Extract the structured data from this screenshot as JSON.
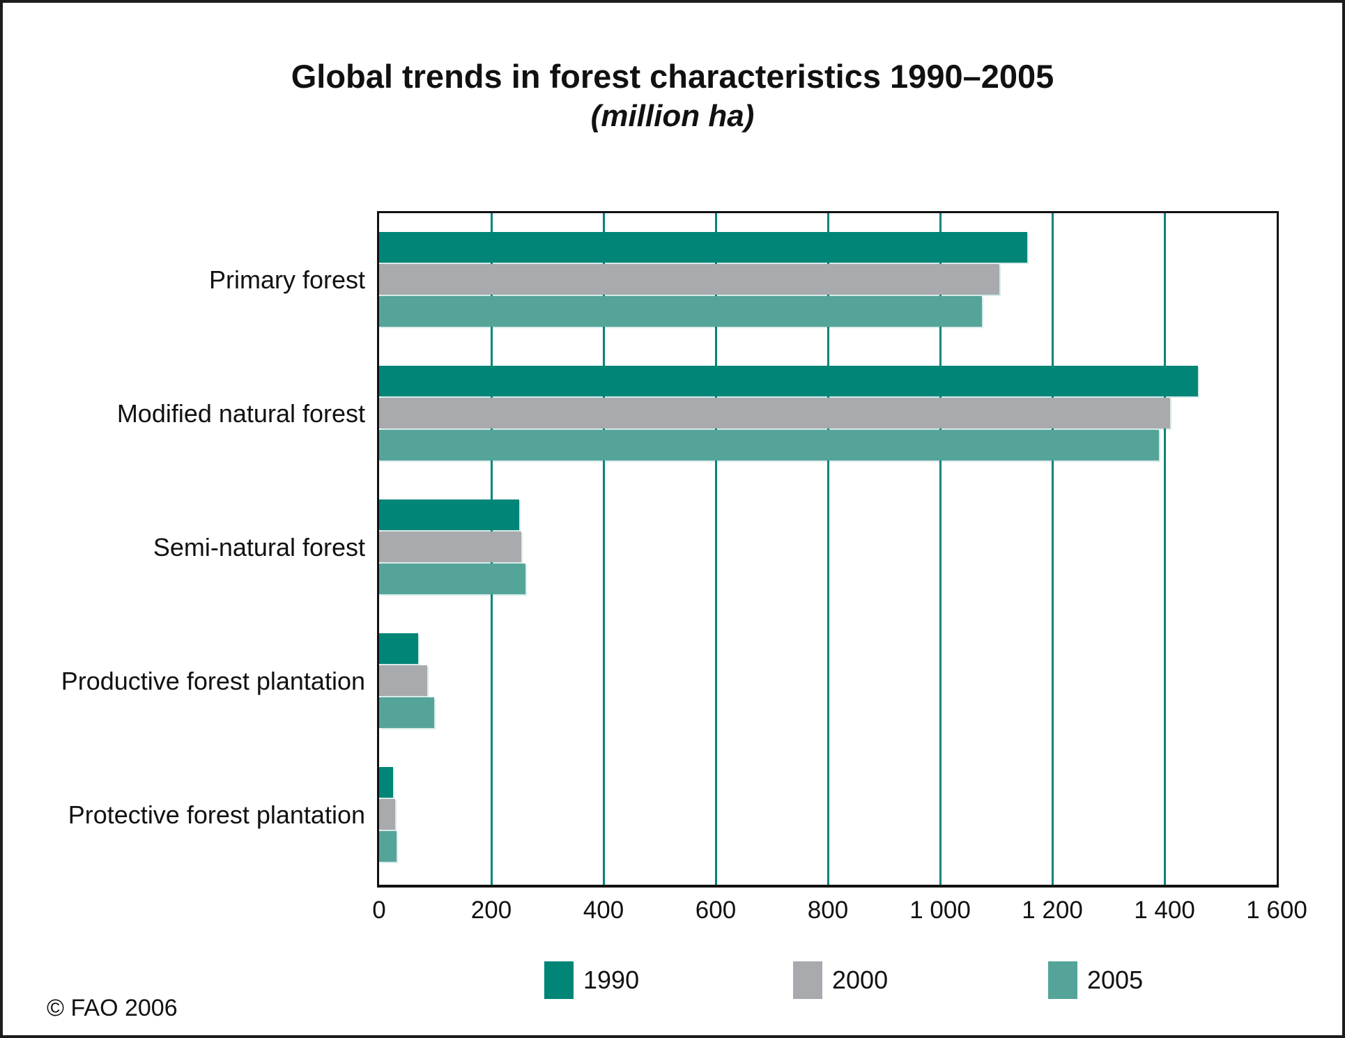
{
  "figure": {
    "title": "Global trends in forest characteristics 1990–2005",
    "subtitle": "(million ha)",
    "footer": "© FAO 2006"
  },
  "colors": {
    "series_1990": "#008577",
    "series_2000": "#A9AAAD",
    "series_2005": "#55A49A",
    "gridline": "#00857B",
    "plot_border": "#111111",
    "outer_border": "#1c1c1c"
  },
  "chart_data": {
    "type": "bar",
    "orientation": "horizontal",
    "title": "Global trends in forest characteristics 1990–2005",
    "subtitle": "(million ha)",
    "unit": "million ha",
    "categories": [
      "Primary forest",
      "Modified natural forest",
      "Semi-natural forest",
      "Productive forest plantation",
      "Protective forest plantation"
    ],
    "series": [
      {
        "name": "1990",
        "color": "#008577",
        "values": [
          1155,
          1460,
          250,
          70,
          25
        ]
      },
      {
        "name": "2000",
        "color": "#A9AAAD",
        "values": [
          1105,
          1410,
          253,
          86,
          29
        ]
      },
      {
        "name": "2005",
        "color": "#55A49A",
        "values": [
          1075,
          1390,
          261,
          98,
          31
        ]
      }
    ],
    "xlim": [
      0,
      1600
    ],
    "xticks": [
      0,
      200,
      400,
      600,
      800,
      1000,
      1200,
      1400,
      1600
    ],
    "xtick_labels": [
      "0",
      "200",
      "400",
      "600",
      "800",
      "1 000",
      "1 200",
      "1 400",
      "1 600"
    ],
    "grid": "vertical gridlines at 200-unit intervals, teal",
    "legend_position": "bottom",
    "legend_entries": [
      "1990",
      "2000",
      "2005"
    ],
    "footer": "© FAO 2006"
  }
}
